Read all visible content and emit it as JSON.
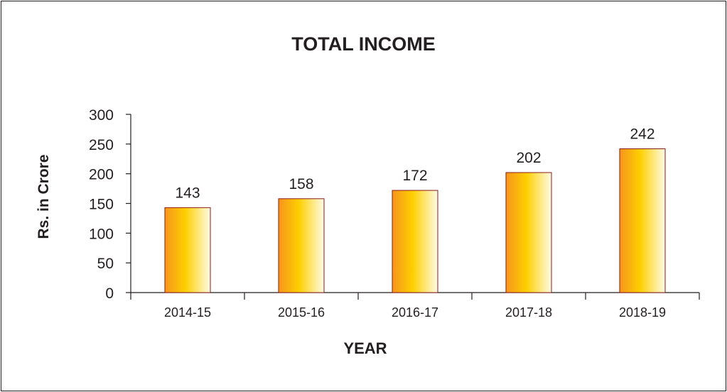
{
  "chart_data": {
    "type": "bar",
    "title": "TOTAL INCOME",
    "xlabel": "YEAR",
    "ylabel": "Rs. in Crore",
    "categories": [
      "2014-15",
      "2015-16",
      "2016-17",
      "2017-18",
      "2018-19"
    ],
    "values": [
      143,
      158,
      172,
      202,
      242
    ],
    "data_labels": [
      "143",
      "158",
      "172",
      "202",
      "242"
    ],
    "yticks": [
      0,
      50,
      100,
      150,
      200,
      250,
      300
    ],
    "ylim": [
      0,
      300
    ],
    "grid": false,
    "legend": "none",
    "colors": {
      "bar_dark": "#f7941d",
      "bar_mid": "#fdd000",
      "bar_light": "#fffbe6",
      "bar_edge": "#8b1a1a",
      "axis": "#231f20"
    }
  }
}
